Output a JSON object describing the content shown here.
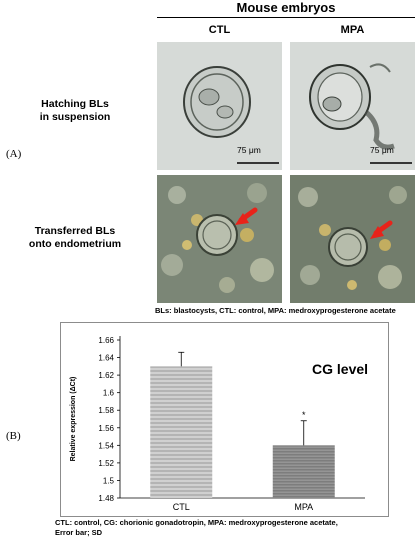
{
  "panel_a": {
    "label": "(A)",
    "header": "Mouse embryos",
    "columns": [
      "CTL",
      "MPA"
    ],
    "rows": [
      {
        "label_line1": "Hatching  BLs",
        "label_line2": "in suspension"
      },
      {
        "label_line1": "Transferred BLs",
        "label_line2": "onto endometrium"
      }
    ],
    "scale_bar": "75 μm",
    "caption": "BLs: blastocysts, CTL: control,  MPA: medroxyprogesterone acetate",
    "arrow_color": "#e8231a"
  },
  "panel_b": {
    "label": "(B)",
    "caption_line1": "CTL: control, CG: chorionic gonadotropin, MPA: medroxyprogesterone acetate,",
    "caption_line2": "Error bar; SD"
  },
  "chart_data": {
    "type": "bar",
    "title": "CG level",
    "ylabel": "Relative expression (ΔCt)",
    "xlabel": "",
    "categories": [
      "CTL",
      "MPA"
    ],
    "values": [
      1.63,
      1.54
    ],
    "errors": [
      0.016,
      0.028
    ],
    "annotations": [
      "",
      "*"
    ],
    "ylim": [
      1.48,
      1.66
    ],
    "yticks": [
      "1.66",
      "1.64",
      "1.62",
      "1.6",
      "1.58",
      "1.56",
      "1.54",
      "1.52",
      "1.5",
      "1.48"
    ],
    "grid": false,
    "bar_colors": [
      "#b4b4b4",
      "#7d7d7d"
    ]
  }
}
